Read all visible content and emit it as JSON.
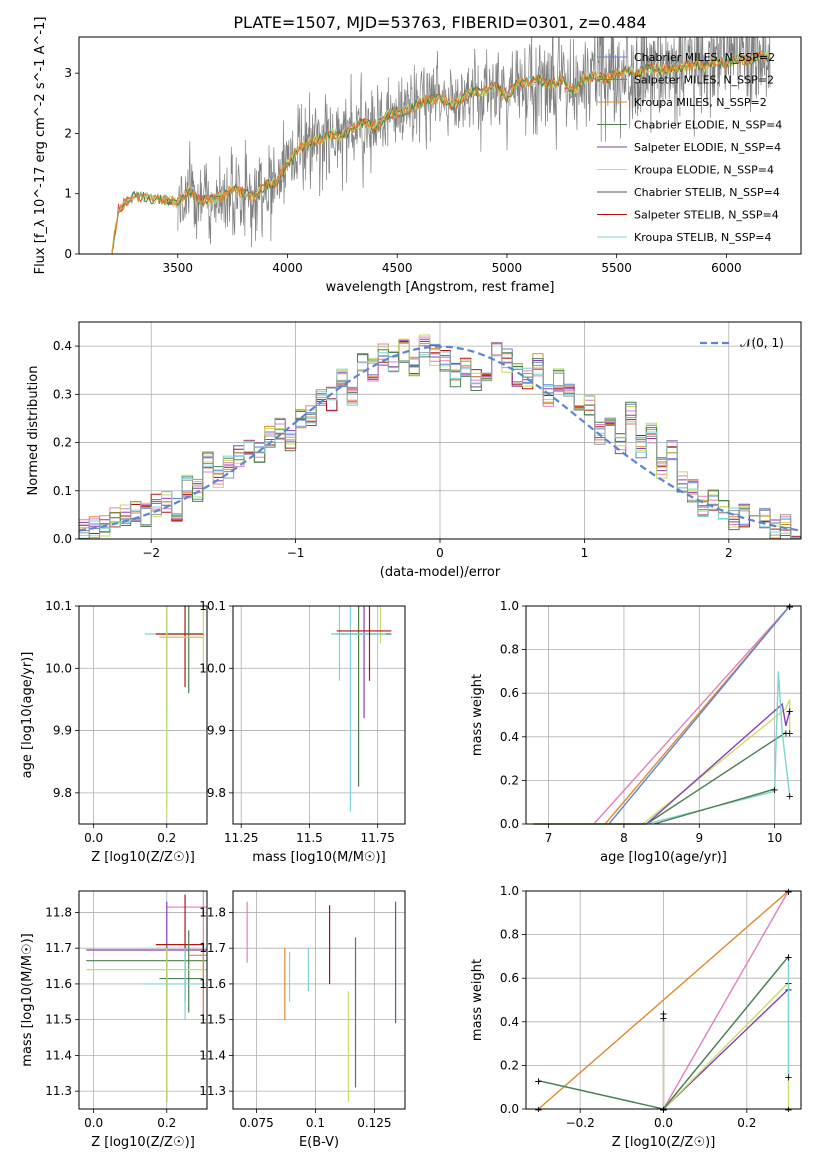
{
  "figure": {
    "title": "PLATE=1507, MJD=53763, FIBERID=0301, z=0.484"
  },
  "colors": {
    "Chabrier MILES": "#5b86d6",
    "Salpeter MILES": "#e0524d",
    "Kroupa MILES": "#e08a2e",
    "Chabrier ELODIE": "#4f7f4f",
    "Salpeter ELODIE": "#8a3fb5",
    "Kroupa ELODIE": "#c7df6b",
    "Chabrier STELIB": "#555555",
    "Salpeter STELIB": "#b31313",
    "Kroupa STELIB": "#7fd3d6",
    "pink": "#e37fbf",
    "lime": "#c2df62",
    "spectrum_gray": "#808080"
  },
  "chart_data": [
    {
      "id": "spectrum",
      "type": "line",
      "xlabel": "wavelength [Angstrom, rest frame]",
      "ylabel": "Flux [f_λ 10^-17 erg cm^-2 s^-1 A^-1]",
      "xlim": [
        3050,
        6340
      ],
      "ylim": [
        0,
        3.6
      ],
      "xticks": [
        3500,
        4000,
        4500,
        5000,
        5500,
        6000
      ],
      "yticks": [
        0,
        1,
        2,
        3
      ],
      "grid": false,
      "legend": "top-right",
      "legend_entries": [
        "Chabrier MILES, N_SSP=2",
        "Salpeter MILES, N_SSP=2",
        "Kroupa MILES, N_SSP=2",
        "Chabrier ELODIE, N_SSP=4",
        "Salpeter ELODIE, N_SSP=4",
        "Kroupa ELODIE, N_SSP=4",
        "Chabrier STELIB, N_SSP=4",
        "Salpeter STELIB, N_SSP=4",
        "Kroupa STELIB, N_SSP=4"
      ],
      "model_curve": {
        "x": [
          3200,
          3230,
          3260,
          3300,
          3350,
          3400,
          3450,
          3500,
          3550,
          3600,
          3650,
          3700,
          3750,
          3800,
          3850,
          3900,
          3950,
          4000,
          4050,
          4100,
          4150,
          4200,
          4250,
          4300,
          4350,
          4400,
          4450,
          4500,
          4550,
          4600,
          4650,
          4700,
          4750,
          4800,
          4850,
          4900,
          4950,
          5000,
          5050,
          5100,
          5150,
          5200,
          5250,
          5300,
          5350,
          5400,
          5450,
          5500,
          5550,
          5600,
          5650,
          5700,
          5750,
          5800,
          5850,
          5900,
          5950,
          6000,
          6050,
          6100,
          6150,
          6200
        ],
        "y": [
          0.0,
          0.75,
          0.85,
          0.95,
          0.95,
          0.9,
          0.9,
          0.85,
          1.05,
          0.9,
          0.9,
          0.95,
          1.1,
          1.0,
          0.95,
          1.15,
          1.2,
          1.5,
          1.75,
          1.85,
          1.9,
          2.0,
          1.95,
          2.1,
          2.2,
          2.1,
          2.3,
          2.35,
          2.4,
          2.5,
          2.55,
          2.6,
          2.45,
          2.6,
          2.7,
          2.7,
          2.8,
          2.6,
          2.85,
          2.85,
          2.9,
          2.8,
          2.9,
          2.7,
          2.9,
          2.95,
          2.9,
          3.0,
          3.05,
          3.0,
          3.1,
          3.05,
          3.1,
          3.1,
          3.15,
          3.1,
          3.2,
          3.15,
          3.25,
          3.2,
          3.3,
          3.25
        ]
      },
      "observed_start": 3500,
      "observed_end": 6200
    },
    {
      "id": "residuals",
      "type": "histogram",
      "xlabel": "(data-model)/error",
      "ylabel": "Normed distribution",
      "xlim": [
        -2.5,
        2.5
      ],
      "ylim": [
        0,
        0.45
      ],
      "xticks": [
        -2,
        -1,
        0,
        1,
        2
      ],
      "yticks": [
        0.0,
        0.1,
        0.2,
        0.3,
        0.4
      ],
      "grid": true,
      "legend": "top-right",
      "legend_label": "𝒩(0, 1)",
      "bin_width": 0.1,
      "base_heights": [
        0.02,
        0.025,
        0.03,
        0.04,
        0.05,
        0.06,
        0.05,
        0.07,
        0.08,
        0.06,
        0.11,
        0.1,
        0.16,
        0.13,
        0.15,
        0.17,
        0.19,
        0.18,
        0.21,
        0.23,
        0.2,
        0.25,
        0.26,
        0.3,
        0.29,
        0.34,
        0.3,
        0.36,
        0.35,
        0.38,
        0.37,
        0.39,
        0.36,
        0.4,
        0.38,
        0.37,
        0.34,
        0.36,
        0.33,
        0.35,
        0.39,
        0.37,
        0.34,
        0.33,
        0.36,
        0.3,
        0.33,
        0.31,
        0.26,
        0.28,
        0.22,
        0.24,
        0.2,
        0.26,
        0.19,
        0.22,
        0.15,
        0.18,
        0.12,
        0.1,
        0.07,
        0.08,
        0.06,
        0.04,
        0.05,
        0.03,
        0.04,
        0.02,
        0.03,
        0.02
      ],
      "gaussian": {
        "mean": 0,
        "sigma": 1
      }
    },
    {
      "id": "age-vs-Z",
      "type": "errorbar",
      "xlabel": "Z [log10(Z/Z☉)]",
      "ylabel": "age  [log10(age/yr)]",
      "xlim": [
        -0.04,
        0.31
      ],
      "ylim": [
        9.75,
        10.1
      ],
      "xticks": [
        0.0,
        0.2
      ],
      "yticks": [
        9.8,
        9.9,
        10.0,
        10.1
      ],
      "grid": true
    },
    {
      "id": "age-vs-mass",
      "type": "errorbar",
      "xlabel": "mass [log10(M/M☉)]",
      "ylabel": "",
      "xlim": [
        11.22,
        11.85
      ],
      "ylim": [
        9.75,
        10.1
      ],
      "xticks": [
        11.25,
        11.5,
        11.75
      ],
      "yticks": [
        9.8,
        9.9,
        10.0,
        10.1
      ],
      "grid": true
    },
    {
      "id": "mass-weight-vs-age",
      "type": "line",
      "xlabel": "age  [log10(age/yr)]",
      "ylabel": "mass weight",
      "xlim": [
        6.7,
        10.35
      ],
      "ylim": [
        0.0,
        1.0
      ],
      "xticks": [
        7,
        8,
        9,
        10
      ],
      "yticks": [
        0.0,
        0.2,
        0.4,
        0.6,
        0.8,
        1.0
      ],
      "grid": true
    },
    {
      "id": "mass-vs-Z",
      "type": "errorbar",
      "xlabel": "Z [log10(Z/Z☉)]",
      "ylabel": "mass [log10(M/M☉)]",
      "xlim": [
        -0.04,
        0.31
      ],
      "ylim": [
        11.25,
        11.86
      ],
      "xticks": [
        0.0,
        0.2
      ],
      "yticks": [
        11.3,
        11.4,
        11.5,
        11.6,
        11.7,
        11.8
      ],
      "grid": true
    },
    {
      "id": "mass-vs-EBV",
      "type": "errorbar",
      "xlabel": "E(B-V)",
      "ylabel": "",
      "xlim": [
        0.065,
        0.138
      ],
      "ylim": [
        11.25,
        11.86
      ],
      "xticks": [
        0.075,
        0.1,
        0.125
      ],
      "yticks": [
        11.3,
        11.4,
        11.5,
        11.6,
        11.7,
        11.8
      ],
      "grid": true
    },
    {
      "id": "mass-weight-vs-Z",
      "type": "line",
      "xlabel": "Z [log10(Z/Z☉)]",
      "ylabel": "mass weight",
      "xlim": [
        -0.33,
        0.33
      ],
      "ylim": [
        0.0,
        1.0
      ],
      "xticks": [
        -0.2,
        0.0,
        0.2
      ],
      "yticks": [
        0.0,
        0.2,
        0.4,
        0.6,
        0.8,
        1.0
      ],
      "grid": true
    }
  ]
}
